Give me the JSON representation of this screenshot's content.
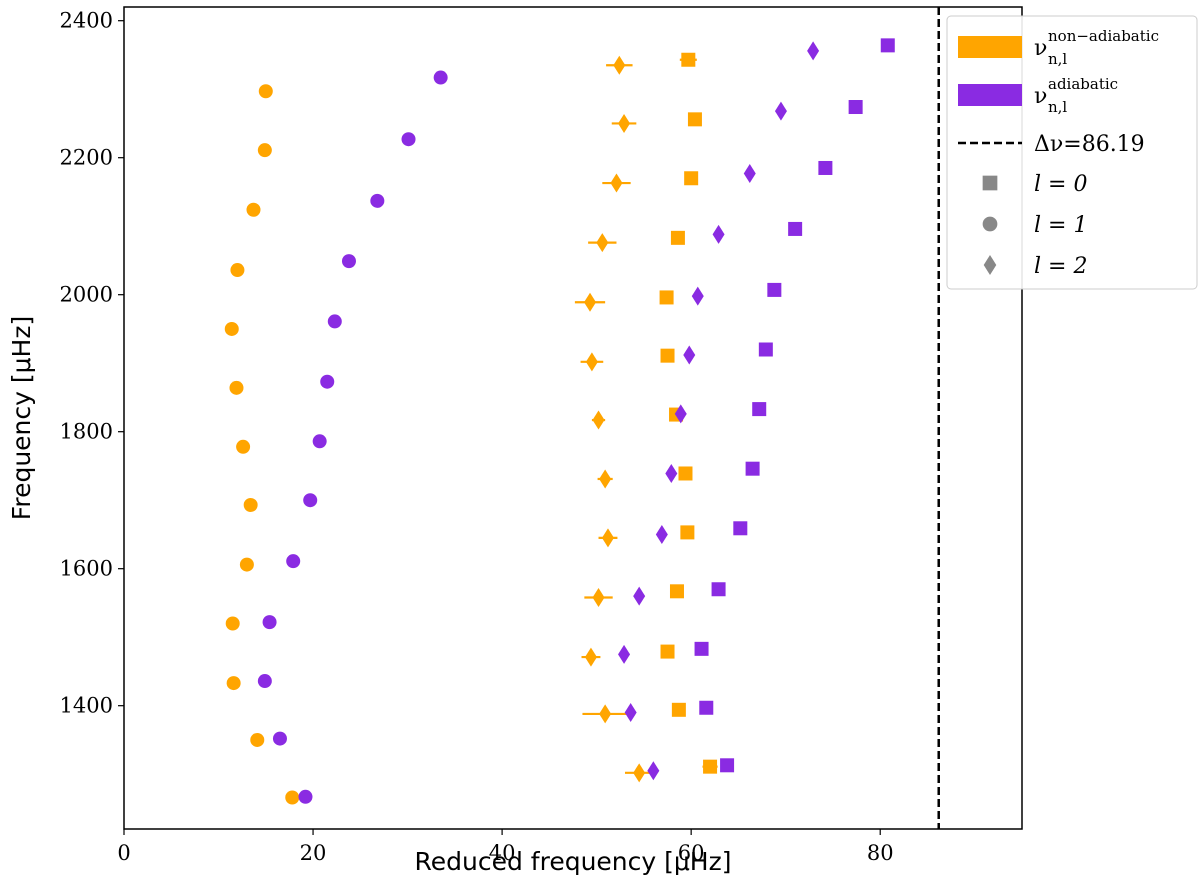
{
  "chart_data": {
    "type": "scatter",
    "title": "",
    "xlabel": "Reduced frequency [μHz]",
    "ylabel": "Frequency [μHz]",
    "xlim": [
      0,
      95
    ],
    "ylim": [
      1220,
      2420
    ],
    "xticks": [
      0,
      20,
      40,
      60,
      80
    ],
    "yticks": [
      1400,
      1600,
      1800,
      2000,
      2200,
      2400
    ],
    "grid": false,
    "legend_position": "top-right",
    "colors": {
      "non_adiabatic": "#FFA500",
      "adiabatic": "#8A2BE2",
      "marker_legend": "#888888"
    },
    "vline": {
      "x": 86.19,
      "label": "Δν=86.19",
      "style": "dashed",
      "color": "#000000"
    },
    "legend": [
      {
        "type": "patch",
        "color": "#FFA500",
        "symbol": "ν",
        "superscript": "non−adiabatic",
        "subscript": "n,l"
      },
      {
        "type": "patch",
        "color": "#8A2BE2",
        "symbol": "ν",
        "superscript": "adiabatic",
        "subscript": "n,l"
      },
      {
        "type": "dashed",
        "label": "Δν=86.19"
      },
      {
        "type": "marker",
        "marker": "square",
        "label": "l = 0"
      },
      {
        "type": "marker",
        "marker": "circle",
        "label": "l = 1"
      },
      {
        "type": "marker",
        "marker": "diamond",
        "label": "l = 2"
      }
    ],
    "series": [
      {
        "group": "non_adiabatic",
        "l": 0,
        "marker": "square",
        "x": [
          62.0,
          58.7,
          57.5,
          58.5,
          59.6,
          59.4,
          58.4,
          57.5,
          57.4,
          58.6,
          60.0,
          60.4,
          59.7
        ],
        "y": [
          1311,
          1394,
          1479,
          1567,
          1653,
          1739,
          1825,
          1911,
          1996,
          2083,
          2170,
          2256,
          2343
        ],
        "xerr": [
          0.8,
          0,
          0,
          0,
          0,
          0,
          0.5,
          0,
          0,
          0,
          0,
          0,
          0.9
        ]
      },
      {
        "group": "non_adiabatic",
        "l": 1,
        "marker": "circle",
        "x": [
          17.8,
          14.1,
          11.6,
          11.5,
          13.0,
          13.4,
          12.6,
          11.9,
          11.4,
          12.0,
          13.7,
          14.9,
          15.0
        ],
        "y": [
          1266,
          1350,
          1433,
          1520,
          1606,
          1693,
          1778,
          1864,
          1950,
          2036,
          2124,
          2211,
          2297
        ],
        "xerr": [
          0.5,
          0,
          0,
          0,
          0,
          0,
          0,
          0,
          0,
          0,
          0,
          0,
          0
        ]
      },
      {
        "group": "non_adiabatic",
        "l": 2,
        "marker": "diamond",
        "x": [
          54.5,
          50.9,
          49.4,
          50.2,
          51.2,
          50.9,
          50.2,
          49.5,
          49.3,
          50.6,
          52.1,
          52.9,
          52.4
        ],
        "y": [
          1302,
          1388,
          1471,
          1558,
          1645,
          1731,
          1817,
          1902,
          1989,
          2076,
          2163,
          2250,
          2335
        ],
        "xerr": [
          1.5,
          2.4,
          1.0,
          1.5,
          1.0,
          0.8,
          0.7,
          1.2,
          1.6,
          1.5,
          1.5,
          1.3,
          1.4
        ]
      },
      {
        "group": "adiabatic",
        "l": 0,
        "marker": "square",
        "x": [
          63.8,
          61.6,
          61.1,
          62.9,
          65.2,
          66.5,
          67.2,
          67.9,
          68.8,
          71.0,
          74.2,
          77.4,
          80.8
        ],
        "y": [
          1313,
          1397,
          1483,
          1570,
          1659,
          1746,
          1833,
          1920,
          2007,
          2096,
          2185,
          2274,
          2364
        ]
      },
      {
        "group": "adiabatic",
        "l": 1,
        "marker": "circle",
        "x": [
          19.2,
          16.5,
          14.9,
          15.4,
          17.9,
          19.7,
          20.7,
          21.5,
          22.3,
          23.8,
          26.8,
          30.1,
          33.5
        ],
        "y": [
          1267,
          1352,
          1436,
          1522,
          1611,
          1700,
          1786,
          1873,
          1961,
          2049,
          2137,
          2227,
          2317
        ]
      },
      {
        "group": "adiabatic",
        "l": 2,
        "marker": "diamond",
        "x": [
          56.0,
          53.6,
          52.9,
          54.5,
          56.9,
          57.9,
          58.9,
          59.8,
          60.7,
          62.9,
          66.2,
          69.5,
          72.9
        ],
        "y": [
          1305,
          1390,
          1475,
          1560,
          1650,
          1739,
          1826,
          1912,
          1998,
          2088,
          2177,
          2268,
          2356
        ]
      }
    ]
  }
}
